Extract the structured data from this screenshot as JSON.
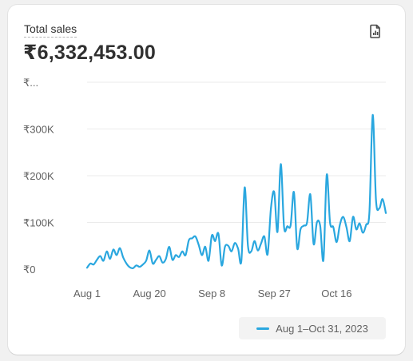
{
  "card": {
    "title": "Total sales",
    "total": "₹6,332,453.00",
    "export_icon": "report-icon"
  },
  "colors": {
    "line": "#2aa7df",
    "grid": "#ebebeb",
    "tick_text": "#616161",
    "title_text": "#303030"
  },
  "chart_data": {
    "type": "line",
    "title": "Total sales",
    "xlabel": "",
    "ylabel": "",
    "ylim": [
      0,
      400000
    ],
    "y_ticks": [
      {
        "value": 0,
        "label": "₹0"
      },
      {
        "value": 100000,
        "label": "₹100K"
      },
      {
        "value": 200000,
        "label": "₹200K"
      },
      {
        "value": 300000,
        "label": "₹300K"
      },
      {
        "value": 400000,
        "label": "₹..."
      }
    ],
    "x_ticks": [
      {
        "date": "2023-08-01",
        "label": "Aug 1"
      },
      {
        "date": "2023-08-20",
        "label": "Aug 20"
      },
      {
        "date": "2023-09-08",
        "label": "Sep 8"
      },
      {
        "date": "2023-09-27",
        "label": "Sep 27"
      },
      {
        "date": "2023-10-16",
        "label": "Oct 16"
      }
    ],
    "grid": true,
    "legend_position": "bottom-right",
    "series": [
      {
        "name": "Aug 1–Oct 31, 2023",
        "x": [
          "2023-08-01",
          "2023-08-02",
          "2023-08-03",
          "2023-08-04",
          "2023-08-05",
          "2023-08-06",
          "2023-08-07",
          "2023-08-08",
          "2023-08-09",
          "2023-08-10",
          "2023-08-11",
          "2023-08-12",
          "2023-08-13",
          "2023-08-14",
          "2023-08-15",
          "2023-08-16",
          "2023-08-17",
          "2023-08-18",
          "2023-08-19",
          "2023-08-20",
          "2023-08-21",
          "2023-08-22",
          "2023-08-23",
          "2023-08-24",
          "2023-08-25",
          "2023-08-26",
          "2023-08-27",
          "2023-08-28",
          "2023-08-29",
          "2023-08-30",
          "2023-08-31",
          "2023-09-01",
          "2023-09-02",
          "2023-09-03",
          "2023-09-04",
          "2023-09-05",
          "2023-09-06",
          "2023-09-07",
          "2023-09-08",
          "2023-09-09",
          "2023-09-10",
          "2023-09-11",
          "2023-09-12",
          "2023-09-13",
          "2023-09-14",
          "2023-09-15",
          "2023-09-16",
          "2023-09-17",
          "2023-09-18",
          "2023-09-19",
          "2023-09-20",
          "2023-09-21",
          "2023-09-22",
          "2023-09-23",
          "2023-09-24",
          "2023-09-25",
          "2023-09-26",
          "2023-09-27",
          "2023-09-28",
          "2023-09-29",
          "2023-09-30",
          "2023-10-01",
          "2023-10-02",
          "2023-10-03",
          "2023-10-04",
          "2023-10-05",
          "2023-10-06",
          "2023-10-07",
          "2023-10-08",
          "2023-10-09",
          "2023-10-10",
          "2023-10-11",
          "2023-10-12",
          "2023-10-13",
          "2023-10-14",
          "2023-10-15",
          "2023-10-16",
          "2023-10-17",
          "2023-10-18",
          "2023-10-19",
          "2023-10-20",
          "2023-10-21",
          "2023-10-22",
          "2023-10-23",
          "2023-10-24",
          "2023-10-25",
          "2023-10-26",
          "2023-10-27",
          "2023-10-28",
          "2023-10-29",
          "2023-10-30",
          "2023-10-31"
        ],
        "values": [
          3000,
          12000,
          10000,
          20000,
          28000,
          18000,
          38000,
          22000,
          42000,
          30000,
          45000,
          25000,
          12000,
          4000,
          2000,
          8000,
          5000,
          10000,
          18000,
          40000,
          12000,
          20000,
          28000,
          14000,
          22000,
          48000,
          20000,
          30000,
          26000,
          38000,
          30000,
          62000,
          66000,
          70000,
          52000,
          30000,
          48000,
          18000,
          72000,
          60000,
          76000,
          8000,
          48000,
          50000,
          38000,
          56000,
          44000,
          18000,
          175000,
          50000,
          38000,
          60000,
          40000,
          55000,
          70000,
          32000,
          130000,
          165000,
          80000,
          225000,
          90000,
          92000,
          94000,
          165000,
          45000,
          85000,
          93000,
          100000,
          160000,
          54000,
          100000,
          93000,
          20000,
          202000,
          100000,
          90000,
          58000,
          95000,
          112000,
          90000,
          60000,
          112000,
          85000,
          98000,
          78000,
          95000,
          122000,
          330000,
          148000,
          130000,
          150000,
          120000
        ]
      }
    ]
  }
}
